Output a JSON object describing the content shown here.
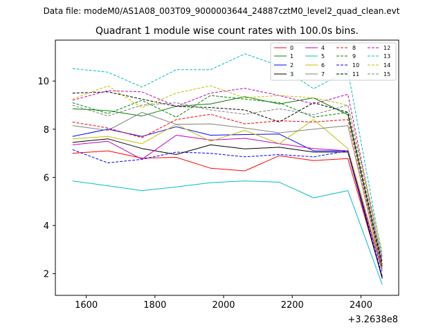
{
  "header": {
    "data_file": "Data file: modeM0/AS1A08_003T09_9000003644_24887cztM0_level2_quad_clean.evt"
  },
  "chart_data": {
    "type": "line",
    "title": "Quadrant 1 module wise count rates with 100.0s bins.",
    "xlabel": "",
    "ylabel": "",
    "x_offset_label": "+3.2638e8",
    "xlim": [
      1510,
      2510
    ],
    "ylim": [
      1.1,
      11.7
    ],
    "xticks": [
      1600,
      1800,
      2000,
      2200,
      2400
    ],
    "yticks": [
      2,
      4,
      6,
      8,
      10
    ],
    "xtick_labels": [
      "1600",
      "1800",
      "2000",
      "2200",
      "2400"
    ],
    "ytick_labels": [
      "2",
      "4",
      "6",
      "8",
      "10"
    ],
    "legend_position": "upper right",
    "x": [
      1560,
      1663,
      1762,
      1862,
      1962,
      2062,
      2162,
      2262,
      2362,
      2462
    ],
    "series": [
      {
        "name": "0",
        "color": "#ff0000",
        "dash": "solid",
        "values": [
          7.0,
          7.1,
          6.8,
          6.83,
          6.38,
          6.27,
          6.9,
          6.7,
          6.78,
          1.85
        ]
      },
      {
        "name": "1",
        "color": "#008000",
        "dash": "solid",
        "values": [
          8.85,
          8.77,
          8.55,
          8.95,
          9.05,
          9.35,
          9.05,
          9.3,
          8.6,
          2.3
        ]
      },
      {
        "name": "2",
        "color": "#0000ff",
        "dash": "solid",
        "values": [
          7.7,
          8.0,
          7.7,
          8.1,
          7.75,
          7.78,
          7.8,
          7.1,
          7.1,
          1.8
        ]
      },
      {
        "name": "3",
        "color": "#000000",
        "dash": "solid",
        "values": [
          7.45,
          7.6,
          7.2,
          6.95,
          7.35,
          7.18,
          7.25,
          7.05,
          7.05,
          1.8
        ]
      },
      {
        "name": "4",
        "color": "#bf00bf",
        "dash": "solid",
        "values": [
          7.35,
          7.5,
          6.75,
          7.75,
          7.55,
          7.62,
          7.4,
          7.2,
          7.1,
          2.1
        ]
      },
      {
        "name": "5",
        "color": "#00bfbf",
        "dash": "solid",
        "values": [
          5.85,
          5.65,
          5.45,
          5.6,
          5.78,
          5.85,
          5.8,
          5.15,
          5.45,
          1.55
        ]
      },
      {
        "name": "6",
        "color": "#bfbf00",
        "dash": "solid",
        "values": [
          7.6,
          7.7,
          7.4,
          8.2,
          7.5,
          7.95,
          7.4,
          8.4,
          7.2,
          2.2
        ]
      },
      {
        "name": "7",
        "color": "#808080",
        "dash": "solid",
        "values": [
          8.15,
          7.95,
          8.7,
          8.2,
          8.22,
          8.05,
          7.85,
          8.0,
          8.15,
          2.1
        ]
      },
      {
        "name": "8",
        "color": "#ff0000",
        "dash": "dashed",
        "values": [
          8.3,
          8.05,
          7.65,
          8.4,
          8.62,
          8.22,
          8.35,
          8.3,
          8.4,
          2.2
        ]
      },
      {
        "name": "9",
        "color": "#008000",
        "dash": "dashed",
        "values": [
          9.1,
          8.65,
          9.2,
          8.5,
          9.4,
          9.25,
          9.1,
          8.5,
          8.7,
          2.3
        ]
      },
      {
        "name": "10",
        "color": "#0000ff",
        "dash": "dashed",
        "values": [
          7.15,
          6.6,
          6.75,
          7.05,
          7.0,
          6.85,
          6.95,
          6.85,
          7.1,
          1.9
        ]
      },
      {
        "name": "11",
        "color": "#000000",
        "dash": "dashed",
        "values": [
          9.5,
          9.55,
          9.25,
          8.95,
          8.9,
          8.8,
          8.3,
          9.1,
          8.7,
          2.4
        ]
      },
      {
        "name": "12",
        "color": "#bf00bf",
        "dash": "dashed",
        "values": [
          9.2,
          9.6,
          9.55,
          8.95,
          9.5,
          9.7,
          9.4,
          9.05,
          9.45,
          2.5
        ]
      },
      {
        "name": "13",
        "color": "#00bfbf",
        "dash": "dashed",
        "values": [
          10.52,
          10.37,
          9.75,
          10.47,
          10.47,
          11.13,
          10.63,
          9.68,
          10.43,
          2.7
        ]
      },
      {
        "name": "14",
        "color": "#bfbf00",
        "dash": "dashed",
        "values": [
          9.25,
          9.8,
          8.9,
          9.5,
          9.8,
          9.3,
          9.4,
          9.3,
          9.0,
          2.9
        ]
      },
      {
        "name": "15",
        "color": "#808080",
        "dash": "dashed",
        "values": [
          9.0,
          8.55,
          9.0,
          9.1,
          8.8,
          8.62,
          8.85,
          8.6,
          9.0,
          2.6
        ]
      }
    ]
  }
}
